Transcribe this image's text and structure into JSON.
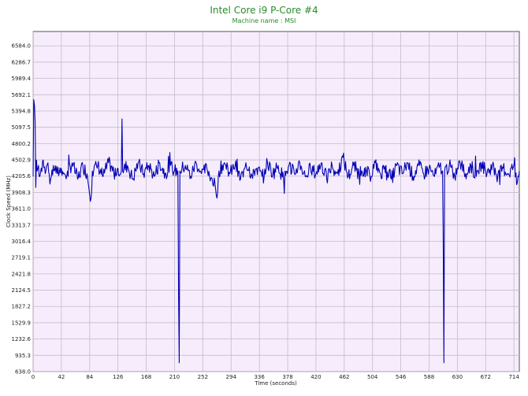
{
  "chart_data": {
    "type": "line",
    "title": "Intel Core i9 P-Core #4",
    "subtitle": "Machine name : MSI",
    "xlabel": "Time (seconds)",
    "ylabel": "Clock Speed (MHz)",
    "xlim": [
      0,
      722
    ],
    "ylim": [
      638.0,
      6846
    ],
    "x_ticks": [
      "0",
      "42",
      "84",
      "126",
      "168",
      "210",
      "252",
      "294",
      "336",
      "378",
      "420",
      "462",
      "504",
      "546",
      "588",
      "630",
      "672",
      "714"
    ],
    "y_ticks": [
      "6584.0",
      "6286.7",
      "5989.4",
      "5692.1",
      "5394.8",
      "5097.5",
      "4800.2",
      "4502.9",
      "4205.6",
      "3908.3",
      "3611.0",
      "3313.7",
      "3016.4",
      "2719.1",
      "2421.8",
      "2124.5",
      "1827.2",
      "1529.9",
      "1232.6",
      "935.3",
      "638.0"
    ],
    "grid": true,
    "colors": {
      "line": "#0000b4",
      "plot_bg": "#f6ecfb",
      "grid": "#c4bccb",
      "title": "#2a8a2a"
    },
    "series": [
      {
        "baseline": 4300,
        "points": [
          [
            0,
            4200
          ],
          [
            1,
            5600
          ],
          [
            2,
            5500
          ],
          [
            3,
            5200
          ],
          [
            4,
            4000
          ],
          [
            5,
            4500
          ],
          [
            6,
            4300
          ],
          [
            8,
            4400
          ],
          [
            10,
            4200
          ],
          [
            12,
            4350
          ],
          [
            15,
            4500
          ],
          [
            18,
            4250
          ],
          [
            22,
            4450
          ],
          [
            26,
            4150
          ],
          [
            30,
            4400
          ],
          [
            36,
            4250
          ],
          [
            42,
            4350
          ],
          [
            50,
            4200
          ],
          [
            58,
            4450
          ],
          [
            66,
            4150
          ],
          [
            74,
            4400
          ],
          [
            80,
            4250
          ],
          [
            86,
            3800
          ],
          [
            88,
            4300
          ],
          [
            96,
            4400
          ],
          [
            104,
            4200
          ],
          [
            112,
            4450
          ],
          [
            120,
            4250
          ],
          [
            126,
            4350
          ],
          [
            131,
            4300
          ],
          [
            132,
            5250
          ],
          [
            133,
            4300
          ],
          [
            140,
            4400
          ],
          [
            148,
            4150
          ],
          [
            156,
            4450
          ],
          [
            164,
            4250
          ],
          [
            172,
            4400
          ],
          [
            180,
            4200
          ],
          [
            188,
            4450
          ],
          [
            196,
            4250
          ],
          [
            204,
            4400
          ],
          [
            210,
            4300
          ],
          [
            215,
            4300
          ],
          [
            216,
            2050
          ],
          [
            217,
            800
          ],
          [
            218,
            4300
          ],
          [
            226,
            4400
          ],
          [
            234,
            4200
          ],
          [
            242,
            4450
          ],
          [
            250,
            4250
          ],
          [
            258,
            4350
          ],
          [
            266,
            4150
          ],
          [
            274,
            3900
          ],
          [
            276,
            4300
          ],
          [
            284,
            4450
          ],
          [
            292,
            4250
          ],
          [
            300,
            4400
          ],
          [
            308,
            4150
          ],
          [
            316,
            4450
          ],
          [
            324,
            4250
          ],
          [
            332,
            4350
          ],
          [
            340,
            4200
          ],
          [
            348,
            4450
          ],
          [
            356,
            4250
          ],
          [
            364,
            4400
          ],
          [
            372,
            4150
          ],
          [
            380,
            4400
          ],
          [
            388,
            4250
          ],
          [
            396,
            4450
          ],
          [
            404,
            4200
          ],
          [
            412,
            4350
          ],
          [
            420,
            4250
          ],
          [
            428,
            4450
          ],
          [
            436,
            4150
          ],
          [
            444,
            4400
          ],
          [
            452,
            4250
          ],
          [
            460,
            4550
          ],
          [
            468,
            4200
          ],
          [
            476,
            4400
          ],
          [
            484,
            4250
          ],
          [
            492,
            4350
          ],
          [
            500,
            4200
          ],
          [
            508,
            4450
          ],
          [
            516,
            4250
          ],
          [
            524,
            4400
          ],
          [
            532,
            4150
          ],
          [
            540,
            4400
          ],
          [
            548,
            4250
          ],
          [
            556,
            4450
          ],
          [
            564,
            4200
          ],
          [
            572,
            4400
          ],
          [
            580,
            4250
          ],
          [
            588,
            4350
          ],
          [
            596,
            4200
          ],
          [
            604,
            4400
          ],
          [
            608,
            4300
          ],
          [
            609,
            3050
          ],
          [
            610,
            800
          ],
          [
            611,
            4300
          ],
          [
            618,
            4400
          ],
          [
            626,
            4200
          ],
          [
            634,
            4450
          ],
          [
            642,
            4250
          ],
          [
            650,
            4400
          ],
          [
            658,
            4200
          ],
          [
            666,
            4450
          ],
          [
            674,
            4250
          ],
          [
            682,
            4400
          ],
          [
            690,
            4200
          ],
          [
            698,
            4350
          ],
          [
            706,
            4250
          ],
          [
            714,
            4400
          ],
          [
            718,
            4050
          ],
          [
            722,
            4300
          ]
        ]
      }
    ]
  }
}
